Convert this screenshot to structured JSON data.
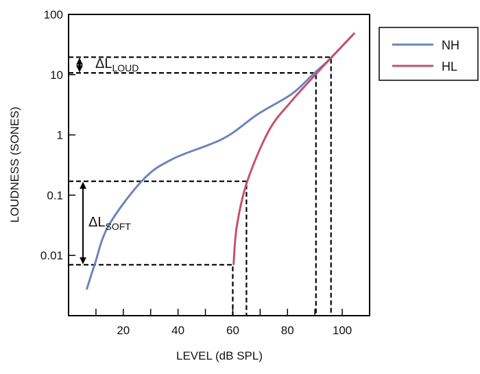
{
  "chart_data": {
    "type": "line",
    "xlabel": "LEVEL (dB SPL)",
    "ylabel": "LOUDNESS (SONES)",
    "xlim": [
      0,
      110
    ],
    "ylim": [
      0.001,
      100
    ],
    "yscale": "log",
    "x_ticks": [
      20,
      40,
      60,
      80,
      100
    ],
    "x_tick_labels": [
      "20",
      "40",
      "60",
      "80",
      "100"
    ],
    "x_minor_ticks": [
      10,
      30,
      50,
      70,
      90,
      110
    ],
    "y_ticks": [
      0.01,
      0.1,
      1,
      10,
      100
    ],
    "y_tick_labels": [
      "0.01",
      "0.1",
      "1",
      "10",
      "100"
    ],
    "grid": false,
    "legend_position": "outside-right-top",
    "series": [
      {
        "name": "NH",
        "color": "#6b84bd",
        "x": [
          6.7,
          9.6,
          14.6,
          27.2,
          38.1,
          56.5,
          69.1,
          81.6,
          89.2,
          95.9,
          104.3
        ],
        "y": [
          0.0028,
          0.0072,
          0.031,
          0.18,
          0.4,
          0.87,
          2.2,
          4.8,
          10,
          19,
          48
        ]
      },
      {
        "name": "HL",
        "color": "#c6506d",
        "x": [
          60.3,
          61.5,
          65.3,
          73.3,
          81.6,
          90.2,
          95.9,
          104.3
        ],
        "y": [
          0.0072,
          0.031,
          0.17,
          1.2,
          3.7,
          10,
          19,
          48
        ]
      }
    ],
    "reference_lines": [
      {
        "level": 65,
        "loudness": 0.17
      },
      {
        "level": 60,
        "loudness": 0.007
      },
      {
        "level": 95.9,
        "loudness": 19.5
      },
      {
        "level": 90.4,
        "loudness": 10.7
      }
    ],
    "annotations": [
      {
        "text": "ΔL",
        "subscript": "LOUD",
        "from": 10.7,
        "to": 19.5
      },
      {
        "text": "ΔL",
        "subscript": "SOFT",
        "from": 0.007,
        "to": 0.17
      }
    ]
  }
}
